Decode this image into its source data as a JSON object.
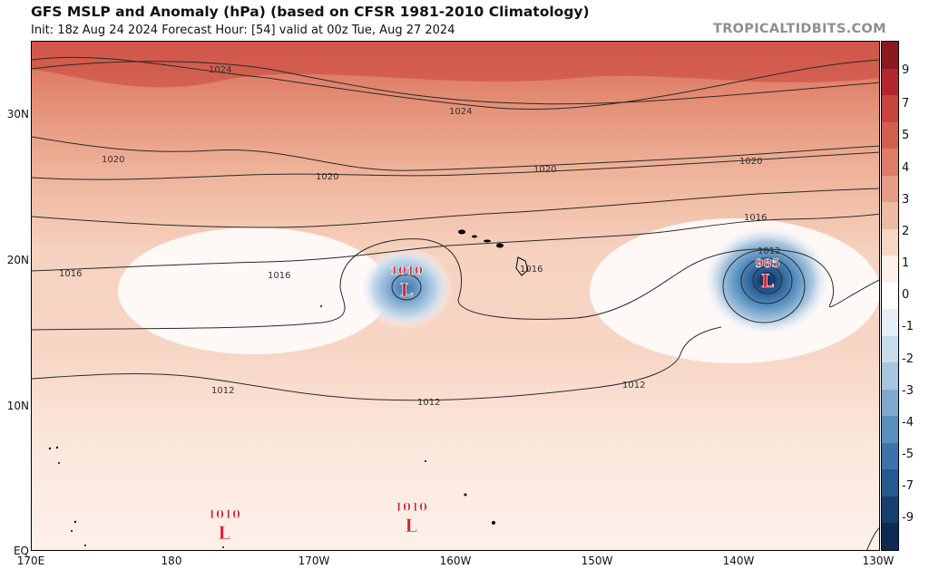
{
  "header": {
    "title": "GFS MSLP and Anomaly (hPa) (based on CFSR 1981-2010 Climatology)",
    "subtitle": "Init: 18z Aug 24 2024   Forecast Hour: [54]   valid at 00z Tue, Aug 27 2024",
    "brand": "TROPICALTIDBITS.COM"
  },
  "axes": {
    "lat_labels": [
      "30N",
      "20N",
      "10N",
      "EQ"
    ],
    "lon_labels": [
      "170E",
      "180",
      "170W",
      "160W",
      "150W",
      "140W",
      "130W"
    ]
  },
  "isobars": {
    "labels": [
      "1024",
      "1024",
      "1020",
      "1020",
      "1020",
      "1020",
      "1016",
      "1016",
      "1016",
      "1016",
      "1012",
      "1012",
      "1012",
      "1012"
    ]
  },
  "pressure_centers": [
    {
      "value": "1010",
      "symbol": "L"
    },
    {
      "value": "985",
      "symbol": "L"
    },
    {
      "value": "1010",
      "symbol": "L"
    },
    {
      "value": "1010",
      "symbol": "L"
    }
  ],
  "colorbar": {
    "ticks": [
      "9",
      "7",
      "5",
      "4",
      "3",
      "2",
      "1",
      "0",
      "-1",
      "-2",
      "-3",
      "-4",
      "-5",
      "-7",
      "-9"
    ],
    "colors": [
      "#8a1a1f",
      "#b32630",
      "#c6453d",
      "#d0614e",
      "#da7e66",
      "#e49c84",
      "#eebaa3",
      "#f6d6c4",
      "#fdf0e8",
      "#ffffff",
      "#e6eff6",
      "#c9dcec",
      "#a7c5df",
      "#7eaacf",
      "#5690bf",
      "#3a74ac",
      "#235a92",
      "#153f72",
      "#0c2a52"
    ]
  },
  "colors": {
    "contour": "#2a2a2a",
    "low_marker": "#d9222a",
    "coast": "#000000"
  }
}
